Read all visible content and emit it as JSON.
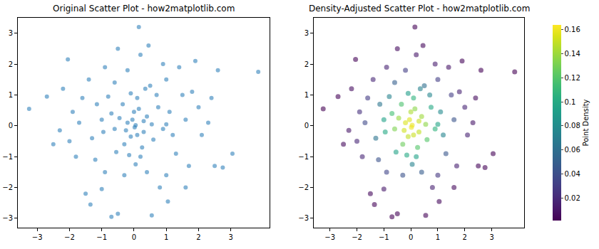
{
  "chart_data": [
    {
      "type": "scatter",
      "title": "Original Scatter Plot - how2matplotlib.com",
      "x": [
        0.05,
        -0.2,
        0.3,
        -0.1,
        0.4,
        -0.45,
        0.15,
        -0.3,
        0.6,
        -0.7,
        0.75,
        -0.55,
        0.9,
        -0.95,
        0.2,
        -0.1,
        1.1,
        -1.15,
        0.5,
        -0.6,
        1.3,
        -1.2,
        0.4,
        -0.3,
        1.6,
        -1.7,
        1.0,
        -1.4,
        1.8,
        -2.0,
        2.1,
        0.8,
        -1.0,
        0.2,
        -0.5,
        0.45,
        2.4,
        -2.2,
        -2.5,
        2.5,
        1.6,
        -1.5,
        0.15,
        -0.7,
        -0.5,
        1.05,
        3.05,
        3.85,
        -3.25,
        -2.7,
        -2.05,
        2.6,
        2.75,
        1.9,
        -1.35,
        0.55,
        2.0,
        -1.8,
        1.4,
        -0.9,
        0.7,
        -0.8,
        1.2,
        -1.3,
        0.05,
        0.1,
        -0.35,
        0.55,
        -0.6,
        0.25,
        1.5,
        -1.6,
        1.7,
        -0.9,
        2.3,
        -2.3,
        0.9,
        -0.2,
        -1.9,
        1.0,
        0.35,
        -1.0,
        1.0,
        -0.15,
        0.0,
        0.3,
        -0.25,
        0.1,
        0.02,
        -0.05
      ],
      "y": [
        0.02,
        0.1,
        -0.2,
        -0.35,
        0.3,
        0.25,
        0.55,
        -0.6,
        -0.45,
        0.4,
        0.6,
        -0.85,
        -0.1,
        -0.2,
        -1.0,
        1.05,
        0.45,
        0.7,
        1.3,
        1.4,
        -0.9,
        -1.1,
        -1.5,
        -1.6,
        0.2,
        0.1,
        1.5,
        1.5,
        1.1,
        -0.5,
        -0.3,
        -2.0,
        -2.05,
        2.3,
        2.5,
        2.6,
        0.9,
        1.2,
        -0.6,
        -1.3,
        -2.0,
        -2.2,
        3.2,
        -2.95,
        -2.85,
        -2.45,
        -0.9,
        1.75,
        0.55,
        0.95,
        2.15,
        1.8,
        -1.35,
        2.1,
        -2.55,
        -2.9,
        0.6,
        -1.0,
        1.9,
        1.9,
        1.0,
        0.95,
        -0.3,
        -0.4,
        -1.25,
        0.9,
        0.7,
        0.05,
        -0.1,
        -0.7,
        1.0,
        0.9,
        -1.3,
        -1.5,
        0.1,
        -0.15,
        2.0,
        1.8,
        0.45,
        -1.6,
        1.2,
        0.2,
        0.05,
        -0.95,
        0.45,
        0.15,
        -0.15,
        -0.3,
        -0.05,
        0.2
      ],
      "color": "#1f77b4",
      "xlim": [
        -3.6,
        4.2
      ],
      "ylim": [
        -3.3,
        3.5
      ],
      "xticks": [
        {
          "value": -3,
          "label": "−3"
        },
        {
          "value": -2,
          "label": "−2"
        },
        {
          "value": -1,
          "label": "−1"
        },
        0,
        1,
        2,
        3
      ],
      "yticks": [
        {
          "value": -3,
          "label": "−3"
        },
        {
          "value": -2,
          "label": "−2"
        },
        {
          "value": -1,
          "label": "−1"
        },
        0,
        1,
        2,
        3
      ],
      "grid": false
    },
    {
      "type": "scatter",
      "title": "Density-Adjusted Scatter Plot - how2matplotlib.com",
      "x": [
        0.05,
        -0.2,
        0.3,
        -0.1,
        0.4,
        -0.45,
        0.15,
        -0.3,
        0.6,
        -0.7,
        0.75,
        -0.55,
        0.9,
        -0.95,
        0.2,
        -0.1,
        1.1,
        -1.15,
        0.5,
        -0.6,
        1.3,
        -1.2,
        0.4,
        -0.3,
        1.6,
        -1.7,
        1.0,
        -1.4,
        1.8,
        -2.0,
        2.1,
        0.8,
        -1.0,
        0.2,
        -0.5,
        0.45,
        2.4,
        -2.2,
        -2.5,
        2.5,
        1.6,
        -1.5,
        0.15,
        -0.7,
        -0.5,
        1.05,
        3.05,
        3.85,
        -3.25,
        -2.7,
        -2.05,
        2.6,
        2.75,
        1.9,
        -1.35,
        0.55,
        2.0,
        -1.8,
        1.4,
        -0.9,
        0.7,
        -0.8,
        1.2,
        -1.3,
        0.05,
        0.1,
        -0.35,
        0.55,
        -0.6,
        0.25,
        1.5,
        -1.6,
        1.7,
        -0.9,
        2.3,
        -2.3,
        0.9,
        -0.2,
        -1.9,
        1.0,
        0.35,
        -1.0,
        1.0,
        -0.15,
        0.0,
        0.3,
        -0.25,
        0.1,
        0.02,
        -0.05
      ],
      "y": [
        0.02,
        0.1,
        -0.2,
        -0.35,
        0.3,
        0.25,
        0.55,
        -0.6,
        -0.45,
        0.4,
        0.6,
        -0.85,
        -0.1,
        -0.2,
        -1.0,
        1.05,
        0.45,
        0.7,
        1.3,
        1.4,
        -0.9,
        -1.1,
        -1.5,
        -1.6,
        0.2,
        0.1,
        1.5,
        1.5,
        1.1,
        -0.5,
        -0.3,
        -2.0,
        -2.05,
        2.3,
        2.5,
        2.6,
        0.9,
        1.2,
        -0.6,
        -1.3,
        -2.0,
        -2.2,
        3.2,
        -2.95,
        -2.85,
        -2.45,
        -0.9,
        1.75,
        0.55,
        0.95,
        2.15,
        1.8,
        -1.35,
        2.1,
        -2.55,
        -2.9,
        0.6,
        -1.0,
        1.9,
        1.9,
        1.0,
        0.95,
        -0.3,
        -0.4,
        -1.25,
        0.9,
        0.7,
        0.05,
        -0.1,
        -0.7,
        1.0,
        0.9,
        -1.3,
        -1.5,
        0.1,
        -0.15,
        2.0,
        1.8,
        0.45,
        -1.6,
        1.2,
        0.2,
        0.05,
        -0.95,
        0.45,
        0.15,
        -0.15,
        -0.3,
        -0.05,
        0.2
      ],
      "density": [
        0.159,
        0.155,
        0.149,
        0.149,
        0.14,
        0.139,
        0.135,
        0.127,
        0.12,
        0.115,
        0.1,
        0.095,
        0.106,
        0.099,
        0.094,
        0.091,
        0.078,
        0.064,
        0.06,
        0.05,
        0.045,
        0.042,
        0.048,
        0.042,
        0.043,
        0.037,
        0.031,
        0.019,
        0.017,
        0.019,
        0.017,
        0.016,
        0.012,
        0.011,
        0.0062,
        0.0049,
        0.006,
        0.0069,
        0.0058,
        0.003,
        0.006,
        0.0046,
        0.002,
        0.0016,
        0.0024,
        0.0046,
        0.002,
        0.0015,
        0.0015,
        0.0026,
        0.002,
        0.002,
        0.002,
        0.003,
        0.003,
        0.002,
        0.018,
        0.019,
        0.01,
        0.017,
        0.075,
        0.073,
        0.074,
        0.063,
        0.073,
        0.106,
        0.117,
        0.136,
        0.132,
        0.12,
        0.031,
        0.029,
        0.016,
        0.035,
        0.011,
        0.011,
        0.014,
        0.031,
        0.024,
        0.027,
        0.073,
        0.094,
        0.096,
        0.1,
        0.144,
        0.151,
        0.152,
        0.151,
        0.16,
        0.156
      ],
      "color": "viridis",
      "colorbar": {
        "title": "Point Density",
        "range": [
          0.0013,
          0.164
        ],
        "ticks": [
          0.02,
          0.04,
          0.06,
          0.08,
          0.1,
          0.12,
          0.14,
          0.16
        ]
      },
      "xlim": [
        -3.6,
        4.2
      ],
      "ylim": [
        -3.3,
        3.5
      ],
      "xticks": [
        {
          "value": -3,
          "label": "−3"
        },
        {
          "value": -2,
          "label": "−2"
        },
        {
          "value": -1,
          "label": "−1"
        },
        0,
        1,
        2,
        3
      ],
      "yticks": [
        {
          "value": -3,
          "label": "−3"
        },
        {
          "value": -2,
          "label": "−2"
        },
        {
          "value": -1,
          "label": "−1"
        },
        0,
        1,
        2,
        3
      ],
      "grid": false
    }
  ]
}
